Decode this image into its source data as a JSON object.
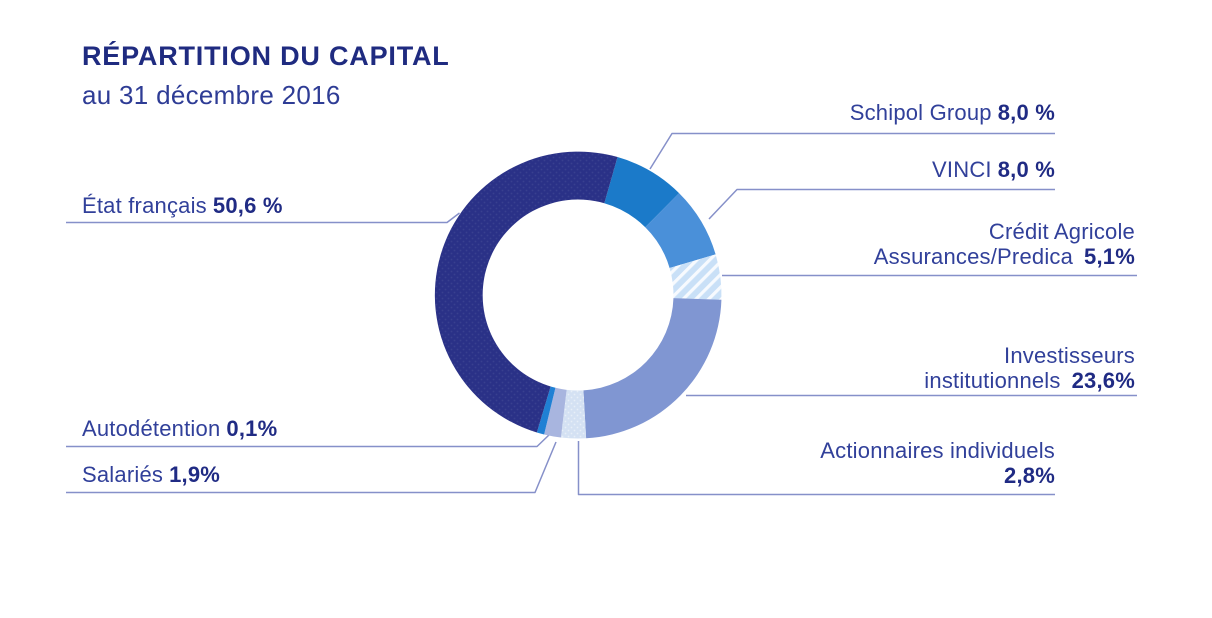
{
  "header": {
    "title": "RÉPARTITION DU CAPITAL",
    "subtitle": "au 31 décembre 2016"
  },
  "chart_data": {
    "type": "pie",
    "variant": "donut",
    "title": "RÉPARTITION DU CAPITAL",
    "subtitle": "au 31 décembre 2016",
    "unit": "%",
    "total": 100.1,
    "start_angle_deg": 16,
    "direction": "clockwise",
    "segments": [
      {
        "label": "Schipol Group",
        "value": 8.0,
        "value_display": "8,0 %",
        "color": "#1b7ac9",
        "pattern": "none"
      },
      {
        "label": "VINCI",
        "value": 8.0,
        "value_display": "8,0 %",
        "color": "#4a90d9",
        "pattern": "none"
      },
      {
        "label": "Crédit Agricole\nAssurances/Predica",
        "value": 5.1,
        "value_display": "5,1%",
        "color": "#c9e0f7",
        "pattern": "hatch"
      },
      {
        "label": "Investisseurs\ninstitutionnels",
        "value": 23.6,
        "value_display": "23,6%",
        "color": "#8096d2",
        "pattern": "none"
      },
      {
        "label": "Actionnaires individuels",
        "value": 2.8,
        "value_display": "2,8%",
        "color": "#d4e1f3",
        "pattern": "dots-light"
      },
      {
        "label": "Salariés",
        "value": 1.9,
        "value_display": "1,9%",
        "color": "#a8b5df",
        "pattern": "none"
      },
      {
        "label": "Autodétention",
        "value": 0.1,
        "value_display": "0,1%",
        "color": "#1f80d4",
        "pattern": "none"
      },
      {
        "label": "État français",
        "value": 50.6,
        "value_display": "50,6 %",
        "color": "#2a3187",
        "pattern": "dots-dark"
      }
    ],
    "legend_position": "callout-labels",
    "grid": false
  },
  "colors": {
    "title_text": "#1f2b80",
    "label_text": "#31409a",
    "value_text": "#202b84",
    "leader_line": "#8690c9",
    "background": "#ffffff"
  }
}
